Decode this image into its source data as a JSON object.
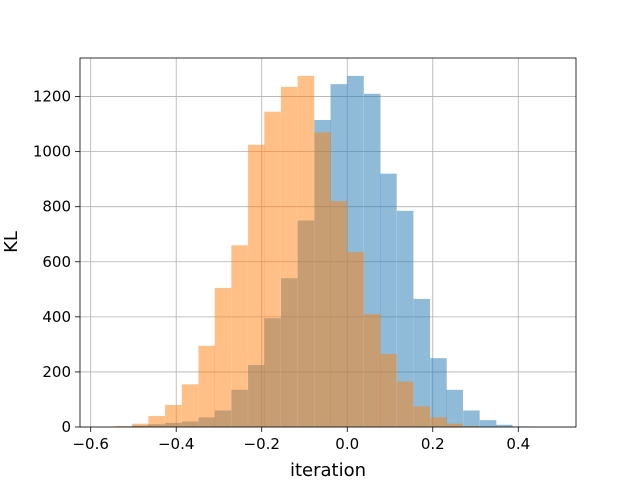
{
  "chart_data": {
    "type": "bar",
    "title": "",
    "xlabel": "iteration",
    "ylabel": "KL",
    "xlim": [
      -0.625,
      0.535
    ],
    "ylim": [
      0,
      1340
    ],
    "grid": true,
    "legend": "none",
    "x_ticks": [
      {
        "value": -0.6,
        "label": "−0.6"
      },
      {
        "value": -0.4,
        "label": "−0.4"
      },
      {
        "value": -0.2,
        "label": "−0.2"
      },
      {
        "value": 0.0,
        "label": "0.0"
      },
      {
        "value": 0.2,
        "label": "0.2"
      },
      {
        "value": 0.4,
        "label": "0.4"
      }
    ],
    "y_ticks": [
      {
        "value": 0,
        "label": "0"
      },
      {
        "value": 200,
        "label": "200"
      },
      {
        "value": 400,
        "label": "400"
      },
      {
        "value": 600,
        "label": "600"
      },
      {
        "value": 800,
        "label": "800"
      },
      {
        "value": 1000,
        "label": "1000"
      },
      {
        "value": 1200,
        "label": "1200"
      }
    ],
    "series": [
      {
        "color": "#1f77b4",
        "opacity": 0.5,
        "bin_width": 0.0387,
        "bins": [
          {
            "x0": -0.542,
            "count": 2
          },
          {
            "x0": -0.503,
            "count": 5
          },
          {
            "x0": -0.465,
            "count": 10
          },
          {
            "x0": -0.426,
            "count": 15
          },
          {
            "x0": -0.387,
            "count": 20
          },
          {
            "x0": -0.348,
            "count": 35
          },
          {
            "x0": -0.31,
            "count": 60
          },
          {
            "x0": -0.271,
            "count": 135
          },
          {
            "x0": -0.232,
            "count": 225
          },
          {
            "x0": -0.194,
            "count": 395
          },
          {
            "x0": -0.155,
            "count": 540
          },
          {
            "x0": -0.116,
            "count": 750
          },
          {
            "x0": -0.077,
            "count": 1115
          },
          {
            "x0": -0.039,
            "count": 1245
          },
          {
            "x0": 0.0,
            "count": 1275
          },
          {
            "x0": 0.039,
            "count": 1210
          },
          {
            "x0": 0.077,
            "count": 920
          },
          {
            "x0": 0.116,
            "count": 785
          },
          {
            "x0": 0.155,
            "count": 465
          },
          {
            "x0": 0.194,
            "count": 250
          },
          {
            "x0": 0.232,
            "count": 135
          },
          {
            "x0": 0.271,
            "count": 60
          },
          {
            "x0": 0.31,
            "count": 25
          },
          {
            "x0": 0.348,
            "count": 8
          },
          {
            "x0": 0.387,
            "count": 2
          }
        ]
      },
      {
        "color": "#ff7f0e",
        "opacity": 0.5,
        "bin_width": 0.0387,
        "bins": [
          {
            "x0": -0.542,
            "count": 3
          },
          {
            "x0": -0.503,
            "count": 12
          },
          {
            "x0": -0.465,
            "count": 40
          },
          {
            "x0": -0.426,
            "count": 80
          },
          {
            "x0": -0.387,
            "count": 155
          },
          {
            "x0": -0.348,
            "count": 295
          },
          {
            "x0": -0.31,
            "count": 505
          },
          {
            "x0": -0.271,
            "count": 660
          },
          {
            "x0": -0.232,
            "count": 1025
          },
          {
            "x0": -0.194,
            "count": 1145
          },
          {
            "x0": -0.155,
            "count": 1235
          },
          {
            "x0": -0.116,
            "count": 1275
          },
          {
            "x0": -0.077,
            "count": 1070
          },
          {
            "x0": -0.039,
            "count": 820
          },
          {
            "x0": 0.0,
            "count": 635
          },
          {
            "x0": 0.039,
            "count": 410
          },
          {
            "x0": 0.077,
            "count": 265
          },
          {
            "x0": 0.116,
            "count": 165
          },
          {
            "x0": 0.155,
            "count": 75
          },
          {
            "x0": 0.194,
            "count": 35
          },
          {
            "x0": 0.232,
            "count": 12
          },
          {
            "x0": 0.271,
            "count": 3
          }
        ]
      }
    ]
  }
}
